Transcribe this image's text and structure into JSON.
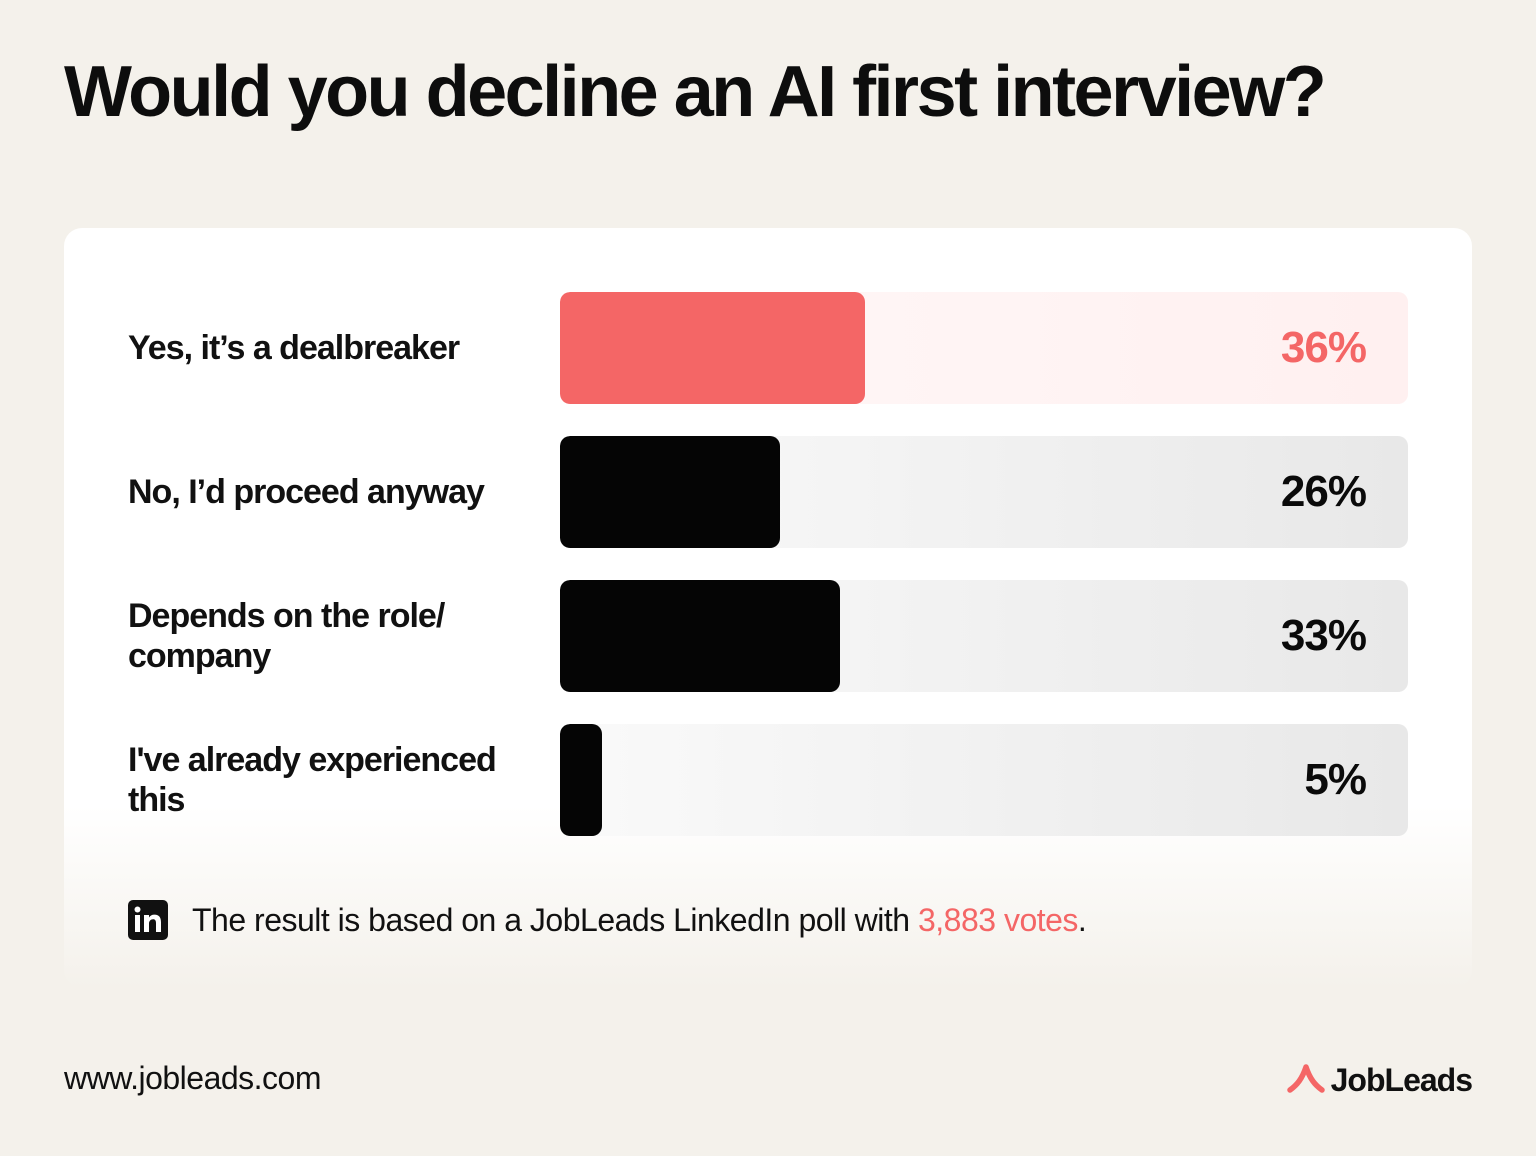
{
  "title": "Would you decline an AI first interview?",
  "colors": {
    "accent": "#f46666",
    "bar": "#050505",
    "background": "#f4f1eb"
  },
  "chart_data": {
    "type": "bar",
    "orientation": "horizontal",
    "title": "Would you decline an AI first interview?",
    "categories": [
      "Yes, it’s a dealbreaker",
      "No, I’d proceed anyway",
      "Depends on the role/ company",
      "I've already experienced this"
    ],
    "values": [
      36,
      26,
      33,
      5
    ],
    "value_labels": [
      "36%",
      "26%",
      "33%",
      "5%"
    ],
    "xlim": [
      0,
      100
    ],
    "highlight_index": 0,
    "grid": false,
    "legend": "none"
  },
  "footnote": {
    "icon": "linkedin-icon",
    "text": "The result is based on a JobLeads LinkedIn poll with ",
    "votes": "3,883 votes",
    "end": "."
  },
  "footer": {
    "url": "www.jobleads.com",
    "brand": "JobLeads",
    "brand_icon": "jobleads-logo-icon"
  }
}
